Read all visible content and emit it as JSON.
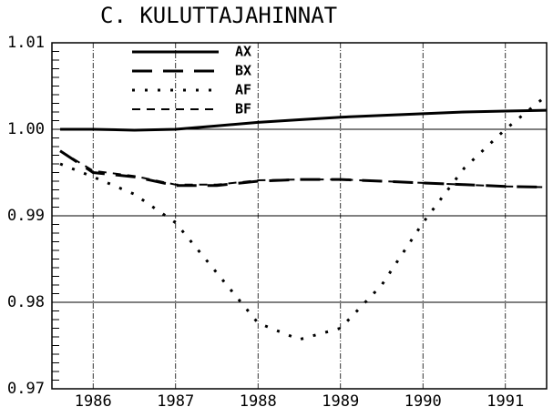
{
  "chart_data": {
    "type": "line",
    "title": "C.  KULUTTAJAHINNAT",
    "x": [
      1985.6,
      1986,
      1986.5,
      1987,
      1987.5,
      1988,
      1988.5,
      1989,
      1989.5,
      1990,
      1990.5,
      1991,
      1991.5
    ],
    "series": [
      {
        "name": "AX",
        "color": "#000000",
        "dash": "solid",
        "values": [
          1.0,
          1.0,
          0.9999,
          1.0,
          1.0004,
          1.0008,
          1.0011,
          1.0014,
          1.0016,
          1.0018,
          1.002,
          1.0021,
          1.0022
        ]
      },
      {
        "name": "BX",
        "color": "#000000",
        "dash": "long",
        "values": [
          0.9975,
          0.995,
          0.9945,
          0.9935,
          0.9935,
          0.994,
          0.9942,
          0.9942,
          0.994,
          0.9938,
          0.9936,
          0.9934,
          0.9933
        ]
      },
      {
        "name": "AF",
        "color": "#000000",
        "dash": "dot",
        "values": [
          0.996,
          0.9945,
          0.9925,
          0.9892,
          0.9834,
          0.9776,
          0.9757,
          0.977,
          0.982,
          0.9892,
          0.9955,
          1.0,
          1.0039
        ]
      },
      {
        "name": "BF",
        "color": "#000000",
        "dash": "short",
        "values": [
          0.9975,
          0.9952,
          0.9946,
          0.9936,
          0.9936,
          0.9941,
          0.9942,
          0.9942,
          0.994,
          0.9938,
          0.9936,
          0.9934,
          0.9933
        ]
      }
    ],
    "xlim": [
      1985.5,
      1991.5
    ],
    "xticks": [
      1986,
      1987,
      1988,
      1989,
      1990,
      1991
    ],
    "ylim": [
      0.97,
      1.01
    ],
    "yticks": [
      0.97,
      0.98,
      0.99,
      {
        "value": 1.0,
        "label": "1.00"
      },
      1.01
    ],
    "grid": true,
    "legend": "top"
  }
}
